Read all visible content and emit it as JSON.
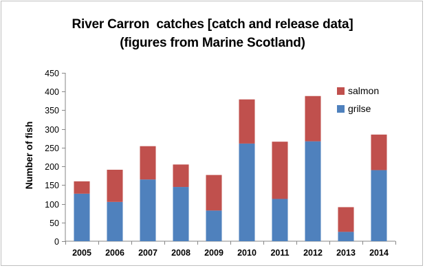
{
  "chart_data": {
    "type": "bar",
    "stacked": true,
    "title_lines": [
      "River Carron  catches [catch and release data]",
      "(figures from Marine Scotland)"
    ],
    "xlabel": "",
    "ylabel": "Number of fish",
    "categories": [
      "2005",
      "2006",
      "2007",
      "2008",
      "2009",
      "2010",
      "2011",
      "2012",
      "2013",
      "2014"
    ],
    "series": [
      {
        "name": "grilse",
        "color": "#4f81bd",
        "values": [
          127,
          105,
          165,
          145,
          82,
          261,
          113,
          267,
          25,
          190
        ]
      },
      {
        "name": "salmon",
        "color": "#c0504d",
        "values": [
          33,
          86,
          89,
          60,
          95,
          118,
          153,
          121,
          66,
          95
        ]
      }
    ],
    "ylim": [
      0,
      450
    ],
    "yticks": [
      0,
      50,
      100,
      150,
      200,
      250,
      300,
      350,
      400,
      450
    ],
    "grid": false,
    "legend_position": "top-right"
  }
}
